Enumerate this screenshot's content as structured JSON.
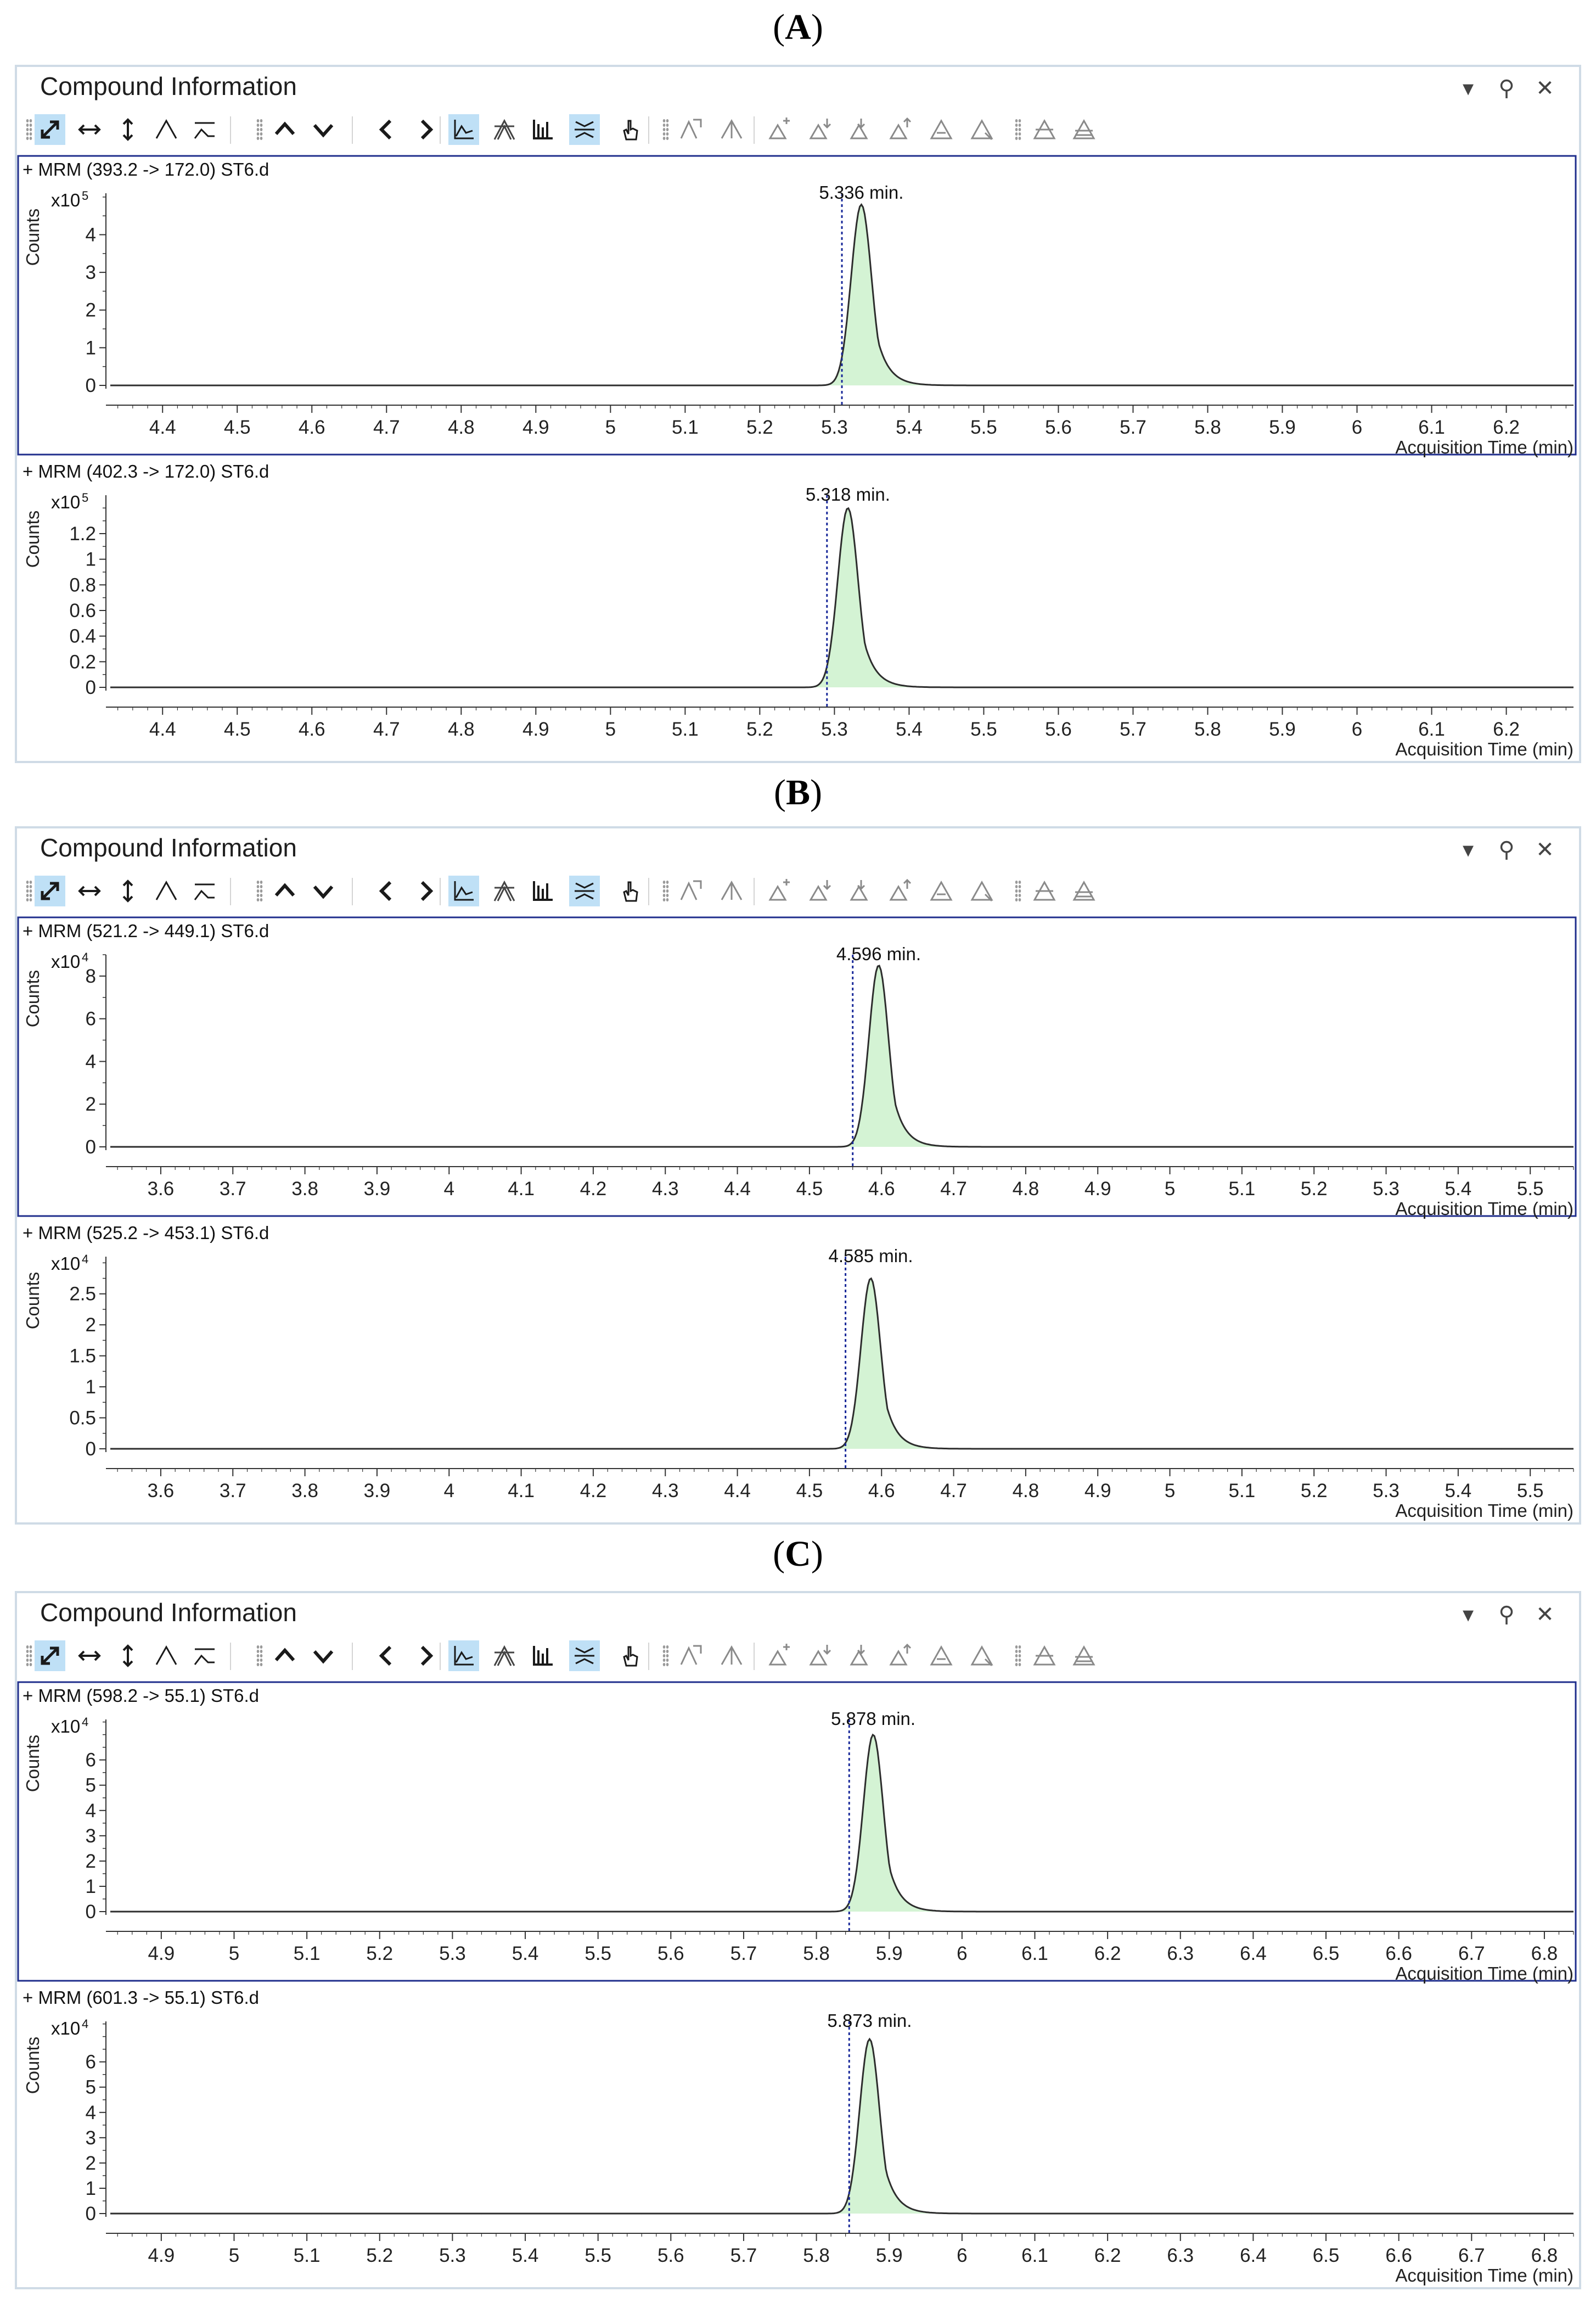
{
  "section_labels": [
    {
      "open": "(",
      "letter": "A",
      "close": ")"
    },
    {
      "open": "(",
      "letter": "B",
      "close": ")"
    },
    {
      "open": "(",
      "letter": "C",
      "close": ")"
    }
  ],
  "panel_title": "Compound Information",
  "colors": {
    "peak_fill": "#d4f3d4",
    "peak_line": "#2d2d2d",
    "frame_active": "#1f2e8c",
    "marker": "#1a2a9a"
  },
  "toolbar_icons": [
    "autoscale-icon",
    "horizontal-zoom-icon",
    "vertical-zoom-icon",
    "peak-icon",
    "baseline-icon",
    "up-arrow-icon",
    "down-arrow-icon",
    "previous-icon",
    "next-icon",
    "line-chart-icon",
    "overlay-peaks-icon",
    "bar-chart-icon",
    "integrate-icon",
    "hand-pointer-icon",
    "peak-edit-icon",
    "peak-split-icon",
    "add-peak-icon",
    "add-peak-2-icon",
    "merge-peak-icon",
    "merge-peak-2-icon",
    "drop-peak-icon",
    "reject-peak-icon",
    "manual-integrate-icon",
    "clear-integration-icon"
  ],
  "chart_data": [
    {
      "type": "line",
      "title": "+ MRM (393.2 -> 172.0) ST6.d",
      "ylabel": "Counts",
      "multiplier_base": "x10",
      "multiplier_exp": "5",
      "xlabel": "Acquisition Time (min)",
      "xlim": [
        4.33,
        6.29
      ],
      "xticks": [
        "4.4",
        "4.5",
        "4.6",
        "4.7",
        "4.8",
        "4.9",
        "5",
        "5.1",
        "5.2",
        "5.3",
        "5.4",
        "5.5",
        "5.6",
        "5.7",
        "5.8",
        "5.9",
        "6",
        "6.1",
        "6.2"
      ],
      "ylim": [
        0,
        5.1
      ],
      "yticks": [
        "0",
        "1",
        "2",
        "3",
        "4"
      ],
      "peak": {
        "rt": 5.336,
        "height": 4.8,
        "sigma": 0.0135,
        "tau": 0.016
      },
      "marker_x": 5.31,
      "peak_label": "5.336 min.",
      "active": true
    },
    {
      "type": "line",
      "title": "+ MRM (402.3 -> 172.0) ST6.d",
      "ylabel": "Counts",
      "multiplier_base": "x10",
      "multiplier_exp": "5",
      "xlabel": "Acquisition Time (min)",
      "xlim": [
        4.33,
        6.29
      ],
      "xticks": [
        "4.4",
        "4.5",
        "4.6",
        "4.7",
        "4.8",
        "4.9",
        "5",
        "5.1",
        "5.2",
        "5.3",
        "5.4",
        "5.5",
        "5.6",
        "5.7",
        "5.8",
        "5.9",
        "6",
        "6.1",
        "6.2"
      ],
      "ylim": [
        0,
        1.5
      ],
      "yticks": [
        "0",
        "0.2",
        "0.4",
        "0.6",
        "0.8",
        "1",
        "1.2"
      ],
      "peak": {
        "rt": 5.318,
        "height": 1.4,
        "sigma": 0.0135,
        "tau": 0.016
      },
      "marker_x": 5.29,
      "peak_label": "5.318 min.",
      "active": false
    },
    {
      "type": "line",
      "title": "+ MRM (521.2 -> 449.1) ST6.d",
      "ylabel": "Counts",
      "multiplier_base": "x10",
      "multiplier_exp": "4",
      "xlabel": "Acquisition Time (min)",
      "xlim": [
        3.53,
        5.56
      ],
      "xticks": [
        "3.6",
        "3.7",
        "3.8",
        "3.9",
        "4",
        "4.1",
        "4.2",
        "4.3",
        "4.4",
        "4.5",
        "4.6",
        "4.7",
        "4.8",
        "4.9",
        "5",
        "5.1",
        "5.2",
        "5.3",
        "5.4",
        "5.5"
      ],
      "ylim": [
        0,
        9
      ],
      "yticks": [
        "0",
        "2",
        "4",
        "6",
        "8"
      ],
      "peak": {
        "rt": 4.596,
        "height": 8.5,
        "sigma": 0.0135,
        "tau": 0.016
      },
      "marker_x": 4.56,
      "peak_label": "4.596 min.",
      "active": true
    },
    {
      "type": "line",
      "title": "+ MRM (525.2 -> 453.1) ST6.d",
      "ylabel": "Counts",
      "multiplier_base": "x10",
      "multiplier_exp": "4",
      "xlabel": "Acquisition Time (min)",
      "xlim": [
        3.53,
        5.56
      ],
      "xticks": [
        "3.6",
        "3.7",
        "3.8",
        "3.9",
        "4",
        "4.1",
        "4.2",
        "4.3",
        "4.4",
        "4.5",
        "4.6",
        "4.7",
        "4.8",
        "4.9",
        "5",
        "5.1",
        "5.2",
        "5.3",
        "5.4",
        "5.5"
      ],
      "ylim": [
        0,
        3.1
      ],
      "yticks": [
        "0",
        "0.5",
        "1",
        "1.5",
        "2",
        "2.5"
      ],
      "peak": {
        "rt": 4.585,
        "height": 2.75,
        "sigma": 0.0135,
        "tau": 0.016
      },
      "marker_x": 4.55,
      "peak_label": "4.585 min.",
      "active": false
    },
    {
      "type": "line",
      "title": "+ MRM (598.2 -> 55.1) ST6.d",
      "ylabel": "Counts",
      "multiplier_base": "x10",
      "multiplier_exp": "4",
      "xlabel": "Acquisition Time (min)",
      "xlim": [
        4.83,
        6.84
      ],
      "xticks": [
        "4.9",
        "5",
        "5.1",
        "5.2",
        "5.3",
        "5.4",
        "5.5",
        "5.6",
        "5.7",
        "5.8",
        "5.9",
        "6",
        "6.1",
        "6.2",
        "6.3",
        "6.4",
        "6.5",
        "6.6",
        "6.7",
        "6.8"
      ],
      "ylim": [
        0,
        7.6
      ],
      "yticks": [
        "0",
        "1",
        "2",
        "3",
        "4",
        "5",
        "6"
      ],
      "peak": {
        "rt": 5.878,
        "height": 7.0,
        "sigma": 0.0135,
        "tau": 0.016
      },
      "marker_x": 5.845,
      "peak_label": "5.878 min.",
      "active": true
    },
    {
      "type": "line",
      "title": "+ MRM (601.3 -> 55.1) ST6.d",
      "ylabel": "Counts",
      "multiplier_base": "x10",
      "multiplier_exp": "4",
      "xlabel": "Acquisition Time (min)",
      "xlim": [
        4.83,
        6.84
      ],
      "xticks": [
        "4.9",
        "5",
        "5.1",
        "5.2",
        "5.3",
        "5.4",
        "5.5",
        "5.6",
        "5.7",
        "5.8",
        "5.9",
        "6",
        "6.1",
        "6.2",
        "6.3",
        "6.4",
        "6.5",
        "6.6",
        "6.7",
        "6.8"
      ],
      "ylim": [
        0,
        7.6
      ],
      "yticks": [
        "0",
        "1",
        "2",
        "3",
        "4",
        "5",
        "6"
      ],
      "peak": {
        "rt": 5.873,
        "height": 6.9,
        "sigma": 0.0135,
        "tau": 0.016
      },
      "marker_x": 5.845,
      "peak_label": "5.873 min.",
      "active": false
    }
  ]
}
